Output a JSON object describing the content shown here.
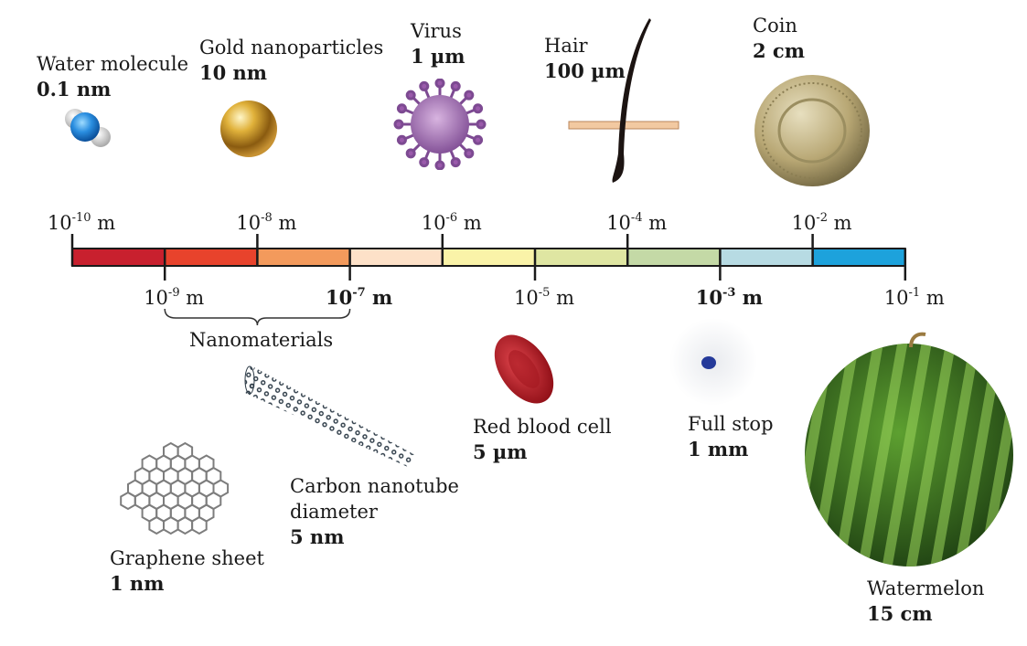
{
  "scale": {
    "segments": [
      "#c8202e",
      "#e8432c",
      "#f39a5c",
      "#fde1c8",
      "#faf3a8",
      "#dfe6a2",
      "#c4d9a6",
      "#b7dbe3",
      "#1da2dc"
    ],
    "top_ticks": [
      {
        "base": "10",
        "exp": "-10",
        "unit": "m",
        "bold": false
      },
      {
        "base": "10",
        "exp": "-8",
        "unit": "m",
        "bold": false
      },
      {
        "base": "10",
        "exp": "-6",
        "unit": "m",
        "bold": false
      },
      {
        "base": "10",
        "exp": "-4",
        "unit": "m",
        "bold": false
      },
      {
        "base": "10",
        "exp": "-2",
        "unit": "m",
        "bold": false
      }
    ],
    "bottom_ticks": [
      {
        "base": "10",
        "exp": "-9",
        "unit": "m",
        "bold": false
      },
      {
        "base": "10",
        "exp": "-7",
        "unit": "m",
        "bold": true
      },
      {
        "base": "10",
        "exp": "-5",
        "unit": "m",
        "bold": false
      },
      {
        "base": "10",
        "exp": "-3",
        "unit": "m",
        "bold": true
      },
      {
        "base": "10",
        "exp": "-1",
        "unit": "m",
        "bold": false
      }
    ],
    "bracket_label": "Nanomaterials"
  },
  "objects": {
    "water": {
      "name": "Water molecule",
      "size": "0.1 nm",
      "icon": "water-molecule-icon"
    },
    "gold": {
      "name": "Gold nanoparticles",
      "size": "10 nm",
      "icon": "gold-nanoparticle-icon"
    },
    "virus": {
      "name": "Virus",
      "size": "1 µm",
      "icon": "virus-icon"
    },
    "hair": {
      "name": "Hair",
      "size": "100 µm",
      "icon": "hair-icon"
    },
    "coin": {
      "name": "Coin",
      "size": "2 cm",
      "icon": "coin-icon"
    },
    "rbc": {
      "name": "Red blood cell",
      "size": "5 µm",
      "icon": "red-blood-cell-icon"
    },
    "fullstop": {
      "name": "Full stop",
      "size": "1 mm",
      "icon": "full-stop-icon"
    },
    "watermelon": {
      "name": "Watermelon",
      "size": "15 cm",
      "icon": "watermelon-icon"
    },
    "graphene": {
      "name": "Graphene sheet",
      "size": "1 nm",
      "icon": "graphene-sheet-icon"
    },
    "nanotube": {
      "name1": "Carbon nanotube",
      "name2": "diameter",
      "size": "5 nm",
      "icon": "carbon-nanotube-icon"
    }
  }
}
